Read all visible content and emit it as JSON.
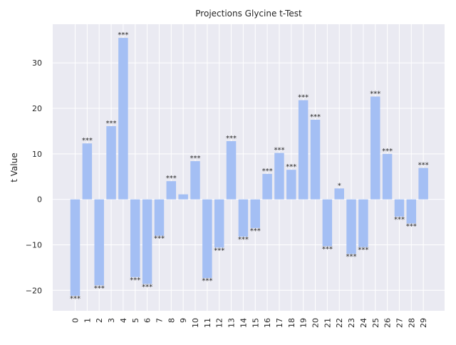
{
  "chart_data": {
    "type": "bar",
    "title": "Projections Glycine t-Test",
    "xlabel": "",
    "ylabel": "t Value",
    "categories": [
      "0",
      "1",
      "2",
      "3",
      "4",
      "5",
      "6",
      "7",
      "8",
      "9",
      "10",
      "11",
      "12",
      "13",
      "14",
      "15",
      "16",
      "17",
      "18",
      "19",
      "20",
      "21",
      "22",
      "23",
      "24",
      "25",
      "26",
      "27",
      "28",
      "29"
    ],
    "values": [
      -21.2,
      12.3,
      -18.9,
      16.1,
      35.5,
      -17.1,
      -18.6,
      -8.0,
      4.0,
      1.1,
      8.4,
      -17.3,
      -10.6,
      12.8,
      -8.2,
      -6.3,
      5.6,
      10.2,
      6.5,
      21.8,
      17.5,
      -10.3,
      2.4,
      -12.0,
      -10.5,
      22.6,
      10.0,
      -3.8,
      -5.3,
      6.9
    ],
    "annotations": [
      "***",
      "***",
      "***",
      "***",
      "***",
      "***",
      "***",
      "***",
      "***",
      "",
      "***",
      "***",
      "***",
      "***",
      "***",
      "***",
      "***",
      "***",
      "***",
      "***",
      "***",
      "***",
      "*",
      "***",
      "***",
      "***",
      "***",
      "***",
      "***",
      "***"
    ],
    "yticks": [
      -20,
      -10,
      0,
      10,
      20,
      30
    ],
    "ylim": [
      -24.5,
      38.5
    ],
    "grid": true,
    "colors": {
      "bar": "#a4bff4",
      "background": "#eaeaf2",
      "grid": "#ffffff",
      "text": "#262626"
    }
  }
}
